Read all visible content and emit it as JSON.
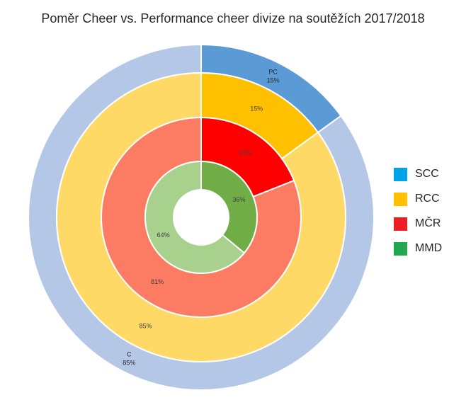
{
  "chart_data": {
    "type": "pie",
    "subtype": "multi-level doughnut",
    "title": "Poměr Cheer vs. Performance cheer divize na soutěžích 2017/2018",
    "legend_position": "right",
    "legend": [
      {
        "label": "SCC",
        "color": "#00a2e8"
      },
      {
        "label": "RCC",
        "color": "#ffc000"
      },
      {
        "label": "MČR",
        "color": "#ee1c25"
      },
      {
        "label": "MMD",
        "color": "#21a84e"
      }
    ],
    "rings": [
      {
        "name": "SCC",
        "slices": [
          {
            "category": "PC",
            "value": 15,
            "label": "15%",
            "color": "#5b9bd5"
          },
          {
            "category": "C",
            "value": 85,
            "label": "85%",
            "color": "#b4c7e7"
          }
        ]
      },
      {
        "name": "RCC",
        "slices": [
          {
            "category": "PC",
            "value": 15,
            "label": "15%",
            "color": "#ffc000"
          },
          {
            "category": "C",
            "value": 85,
            "label": "85%",
            "color": "#ffd966"
          }
        ]
      },
      {
        "name": "MČR",
        "slices": [
          {
            "category": "PC",
            "value": 19,
            "label": "19%",
            "color": "#ff0000"
          },
          {
            "category": "C",
            "value": 81,
            "label": "81%",
            "color": "#fb7b63"
          }
        ]
      },
      {
        "name": "MMD",
        "slices": [
          {
            "category": "PC",
            "value": 36,
            "label": "36%",
            "color": "#70ad47"
          },
          {
            "category": "C",
            "value": 64,
            "label": "64%",
            "color": "#a9d18e"
          }
        ]
      }
    ]
  }
}
